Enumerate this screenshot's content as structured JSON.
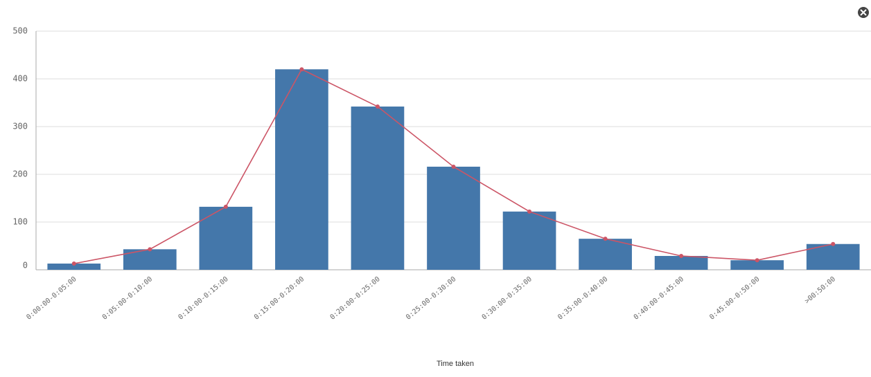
{
  "chart_data": {
    "type": "bar",
    "x_label": "Time taken",
    "categories": [
      "0:00:00-0:05:00",
      "0:05:00-0:10:00",
      "0:10:00-0:15:00",
      "0:15:00-0:20:00",
      "0:20:00-0:25:00",
      "0:25:00-0:30:00",
      "0:30:00-0:35:00",
      "0:35:00-0:40:00",
      "0:40:00-0:45:00",
      "0:45:00-0:50:00",
      ">00:50:00"
    ],
    "series": [
      {
        "type": "bar",
        "color": "#4477aa",
        "values": [
          13,
          43,
          132,
          420,
          342,
          216,
          122,
          65,
          29,
          20,
          54
        ]
      },
      {
        "type": "line",
        "color": "#cc5566",
        "values": [
          13,
          43,
          132,
          420,
          342,
          216,
          122,
          65,
          29,
          20,
          54
        ]
      }
    ],
    "ylim": [
      0,
      500
    ],
    "yticks": [
      0,
      100,
      200,
      300,
      400,
      500
    ],
    "grid": true
  }
}
